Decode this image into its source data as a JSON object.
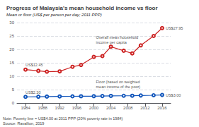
{
  "chart_data": {
    "type": "line",
    "title": "Progress of Malaysia's mean household income vs floor",
    "ylabel": "Mean or floor (US$ per person per day; 2011 PPP)",
    "note": "Note: Poverty line = US$4.00 at 2011 PPP (20% poverty rate in 1984)\nSource: Ravallion, 2019",
    "x": [
      1984,
      1987,
      1989,
      1992,
      1995,
      1997,
      2000,
      2002,
      2004,
      2007,
      2009,
      2011,
      2014,
      2016
    ],
    "series": [
      {
        "color": "#cc2222",
        "marker": "circle",
        "values": [
          12.45,
          12.0,
          11.7,
          11.8,
          13.5,
          14.2,
          17.2,
          17.5,
          21.0,
          19.5,
          18.5,
          21.5,
          25.0,
          27.95
        ]
      },
      {
        "color": "#1155bb",
        "marker": "circle",
        "values": [
          2.3,
          2.35,
          2.4,
          2.45,
          2.5,
          2.52,
          2.55,
          2.6,
          2.65,
          2.7,
          2.72,
          2.8,
          2.9,
          3.0
        ]
      }
    ],
    "xlim": [
      1982,
      2018
    ],
    "xticks": [
      1984,
      1988,
      1992,
      1996,
      2000,
      2004,
      2008,
      2012,
      2016
    ],
    "ylim": [
      0,
      30
    ],
    "yticks": [
      0,
      5,
      10,
      15,
      20,
      25,
      30
    ],
    "grid": true,
    "annotations": [
      {
        "text": "US$12.45",
        "x": 1984,
        "y": 12.45
      },
      {
        "text": "US$27.95",
        "x": 2016,
        "y": 27.95
      },
      {
        "text": "US$2.30",
        "x": 1984,
        "y": 2.3
      },
      {
        "text": "US$3.00",
        "x": 2016,
        "y": 3.0
      },
      {
        "text": "Overall mean household\nincome per capita",
        "x": 2000.5,
        "y": 23.5
      },
      {
        "text": "Floor (based on weighted\nmean income of the poor)",
        "x": 2000.5,
        "y": 7.0
      }
    ]
  }
}
